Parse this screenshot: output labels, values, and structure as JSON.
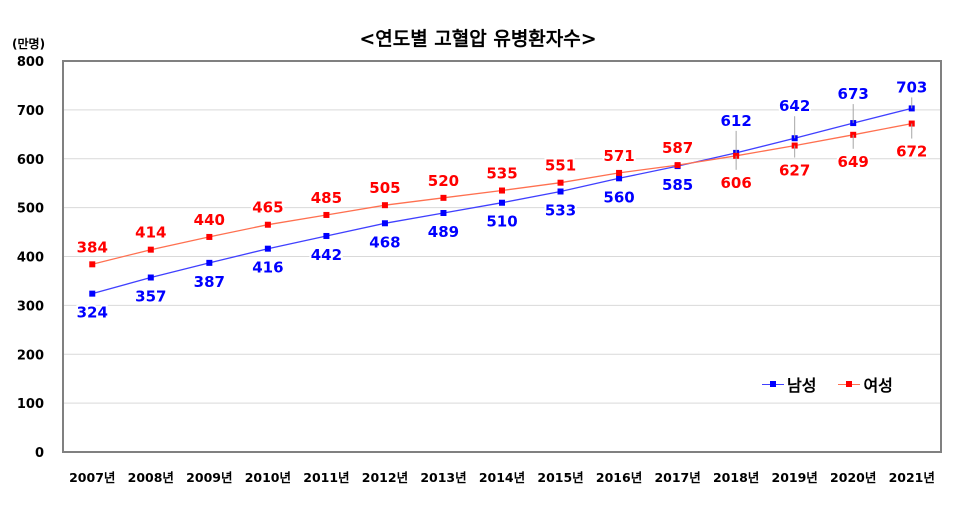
{
  "title": "<연도별 고혈압 유병환자수>",
  "unit": "(만명)",
  "legend": {
    "male": {
      "label": "남성",
      "color": "#0000FF",
      "line_color": "#4040FF"
    },
    "female": {
      "label": "여성",
      "color": "#FF0000",
      "line_color": "#FF7050"
    }
  },
  "chart_data": {
    "type": "line",
    "title": "<연도별 고혈압 유병환자수>",
    "xlabel": "",
    "ylabel": "(만명)",
    "ylim": [
      0,
      800
    ],
    "yticks": [
      0,
      100,
      200,
      300,
      400,
      500,
      600,
      700,
      800
    ],
    "grid": true,
    "legend_position": "lower right inside",
    "categories": [
      "2007년",
      "2008년",
      "2009년",
      "2010년",
      "2011년",
      "2012년",
      "2013년",
      "2014년",
      "2015년",
      "2016년",
      "2017년",
      "2018년",
      "2019년",
      "2020년",
      "2021년"
    ],
    "series": [
      {
        "name": "남성",
        "color": "#0000FF",
        "values": [
          324,
          357,
          387,
          416,
          442,
          468,
          489,
          510,
          533,
          560,
          585,
          612,
          642,
          673,
          703
        ]
      },
      {
        "name": "여성",
        "color": "#FF0000",
        "values": [
          384,
          414,
          440,
          465,
          485,
          505,
          520,
          535,
          551,
          571,
          587,
          606,
          627,
          649,
          672
        ]
      }
    ]
  }
}
